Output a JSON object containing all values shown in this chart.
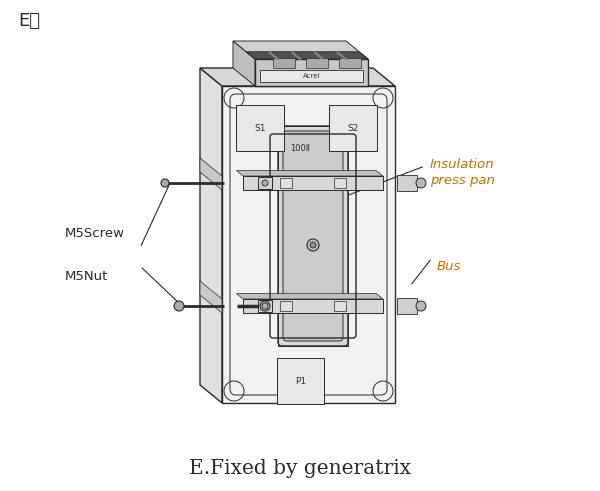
{
  "title_label": "E：",
  "bottom_caption": "E.Fixed by generatrix",
  "labels": {
    "insulation_press_pan": "Insulation\npress pan",
    "bus": "Bus",
    "m5screw": "M5Screw",
    "m5nut": "M5Nut"
  },
  "bg_color": "#ffffff",
  "line_color": "#2a2a2a",
  "label_color_insulation": "#c87000",
  "label_color_bus": "#c87000",
  "text_color": "#2a2a2a",
  "caption_color": "#2a2a2a",
  "body_fill": "#f2f2f2",
  "side_fill": "#e0e0e0",
  "top_fill": "#d8d8d8",
  "slot_fill": "#e8e8e8",
  "connector_fill": "#c8c8c8"
}
